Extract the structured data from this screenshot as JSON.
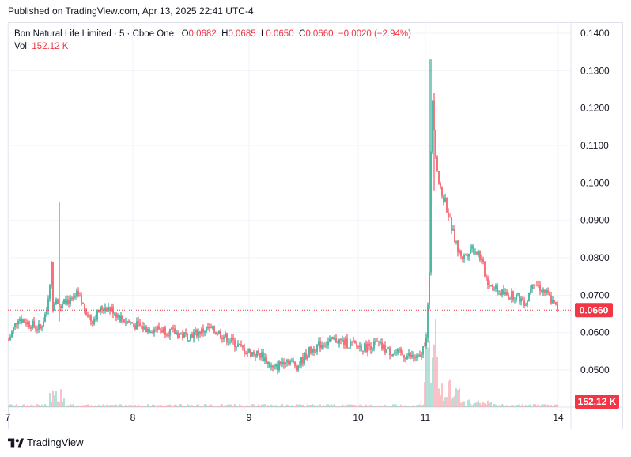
{
  "header": {
    "published": "Published on TradingView.com, Apr 13, 2025 22:41 UTC-4"
  },
  "legend": {
    "symbol": "Bon Natural Life Limited · 5 · Cboe One",
    "o_label": "O",
    "o_value": "0.0682",
    "h_label": "H",
    "h_value": "0.0685",
    "l_label": "L",
    "l_value": "0.0650",
    "c_label": "C",
    "c_value": "0.0660",
    "change": "−0.0020 (−2.94%)",
    "vol_label": "Vol",
    "vol_value": "152.12 K"
  },
  "colors": {
    "up": "#089981",
    "down": "#f23645",
    "grid": "#f0f3fa",
    "text": "#131722"
  },
  "footer": {
    "brand": "TradingView"
  },
  "chart_data": {
    "type": "candlestick",
    "y_axis_ticks": [
      "0.1400",
      "0.1300",
      "0.1200",
      "0.1100",
      "0.1000",
      "0.0900",
      "0.0800",
      "0.0700",
      "0.0600",
      "0.0500"
    ],
    "ylim": [
      0.045,
      0.142
    ],
    "x_axis_ticks": [
      "7",
      "8",
      "9",
      "10",
      "11",
      "14"
    ],
    "last_price_label": "0.0660",
    "last_price": 0.066,
    "volume_label": "152.12 K",
    "grid": true,
    "series_profile": [
      [
        0,
        0.058
      ],
      [
        12,
        0.064
      ],
      [
        30,
        0.062
      ],
      [
        40,
        0.061
      ],
      [
        48,
        0.066
      ],
      [
        54,
        0.078
      ],
      [
        56,
        0.067
      ],
      [
        60,
        0.07
      ],
      [
        66,
        0.066
      ],
      [
        72,
        0.069
      ],
      [
        80,
        0.068
      ],
      [
        86,
        0.07
      ],
      [
        95,
        0.067
      ],
      [
        105,
        0.063
      ],
      [
        115,
        0.066
      ],
      [
        122,
        0.067
      ],
      [
        132,
        0.066
      ],
      [
        140,
        0.064
      ],
      [
        150,
        0.063
      ],
      [
        160,
        0.062
      ],
      [
        175,
        0.061
      ],
      [
        190,
        0.061
      ],
      [
        210,
        0.06
      ],
      [
        225,
        0.059
      ],
      [
        240,
        0.06
      ],
      [
        252,
        0.061
      ],
      [
        265,
        0.06
      ],
      [
        280,
        0.058
      ],
      [
        300,
        0.055
      ],
      [
        320,
        0.054
      ],
      [
        335,
        0.05
      ],
      [
        350,
        0.053
      ],
      [
        365,
        0.051
      ],
      [
        380,
        0.055
      ],
      [
        395,
        0.057
      ],
      [
        415,
        0.058
      ],
      [
        430,
        0.057
      ],
      [
        450,
        0.056
      ],
      [
        465,
        0.057
      ],
      [
        480,
        0.055
      ],
      [
        500,
        0.054
      ],
      [
        520,
        0.053
      ],
      [
        528,
        0.059
      ],
      [
        532,
        0.075
      ],
      [
        535,
        0.126
      ],
      [
        540,
        0.108
      ],
      [
        545,
        0.098
      ],
      [
        552,
        0.095
      ],
      [
        560,
        0.088
      ],
      [
        568,
        0.082
      ],
      [
        575,
        0.08
      ],
      [
        585,
        0.083
      ],
      [
        595,
        0.081
      ],
      [
        605,
        0.074
      ],
      [
        618,
        0.071
      ],
      [
        630,
        0.07
      ],
      [
        640,
        0.07
      ],
      [
        655,
        0.068
      ],
      [
        662,
        0.074
      ],
      [
        672,
        0.072
      ],
      [
        682,
        0.07
      ],
      [
        688,
        0.068
      ],
      [
        695,
        0.066
      ]
    ],
    "spikes": [
      {
        "x": 64,
        "high": 0.095,
        "low": 0.063
      },
      {
        "x": 533,
        "high": 0.133,
        "low": 0.094
      },
      {
        "x": 538,
        "high": 0.124,
        "low": 0.098
      }
    ]
  }
}
